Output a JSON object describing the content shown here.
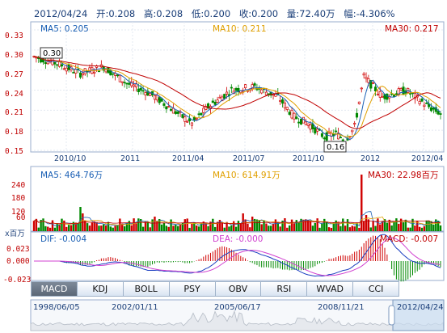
{
  "header": {
    "date": "2012/04/24",
    "open": "开:0.208",
    "high": "高:0.208",
    "low": "低:0.200",
    "close": "收:0.200",
    "volume": "量:72.40万",
    "change": "幅:-4.306%"
  },
  "price_panel": {
    "ma5": "MA5: 0.205",
    "ma10": "MA10: 0.211",
    "ma30": "MA30: 0.217",
    "y_ticks": [
      "0.33",
      "0.30",
      "0.27",
      "0.24",
      "0.21",
      "0.18",
      "0.15"
    ],
    "y_values": [
      0.33,
      0.3,
      0.27,
      0.24,
      0.21,
      0.18,
      0.15
    ],
    "x_labels": [
      "2010/10",
      "2011",
      "2011/04",
      "2011/07",
      "2011/10",
      "2012",
      "2012/04"
    ],
    "high_marker": "0.30",
    "low_marker": "0.16"
  },
  "volume_panel": {
    "ma5": "MA5: 464.76万",
    "ma10": "MA10: 614.91万",
    "ma30": "MA30: 22.98百万",
    "y_ticks": [
      "240",
      "180",
      "120",
      "60"
    ],
    "unit": "x百万"
  },
  "macd_panel": {
    "dif": "DIF: -0.004",
    "dea": "DEA: -0.000",
    "macd": "MACD: -0.007",
    "y_ticks": [
      "0.023",
      "0.000",
      "-0.023"
    ]
  },
  "tabs": [
    "MACD",
    "KDJ",
    "BOLL",
    "PSY",
    "OBV",
    "RSI",
    "WVAD",
    "CCI"
  ],
  "active_tab": "MACD",
  "navigator": {
    "labels": [
      "1998/06/05",
      "2002/01/11",
      "2005/06/17",
      "2008/11/21",
      "2012/04/24"
    ]
  },
  "colors": {
    "up": "#d00000",
    "down": "#008800",
    "ma5": "#1a5fb4",
    "ma10": "#e0a000",
    "ma30": "#c00000",
    "axis_text": "#c00000"
  },
  "chart_data": [
    {
      "type": "candlestick",
      "title": "2012/04/24",
      "x_labels": [
        "2010/10",
        "2011",
        "2011/04",
        "2011/07",
        "2011/10",
        "2012",
        "2012/04"
      ],
      "ylim": [
        0.15,
        0.33
      ],
      "series": [
        {
          "name": "MA5",
          "last": 0.205
        },
        {
          "name": "MA10",
          "last": 0.211
        },
        {
          "name": "MA30",
          "last": 0.217
        }
      ],
      "high": 0.3,
      "low": 0.16
    },
    {
      "type": "bar",
      "ylim": [
        0,
        260
      ],
      "series": [
        {
          "name": "MA5",
          "last": "464.76万"
        },
        {
          "name": "MA10",
          "last": "614.91万"
        },
        {
          "name": "MA30",
          "last": "22.98百万"
        }
      ]
    },
    {
      "type": "bar",
      "ylim": [
        -0.023,
        0.023
      ],
      "series": [
        {
          "name": "DIF",
          "last": -0.004
        },
        {
          "name": "DEA",
          "last": -0.0
        },
        {
          "name": "MACD",
          "last": -0.007
        }
      ]
    }
  ]
}
